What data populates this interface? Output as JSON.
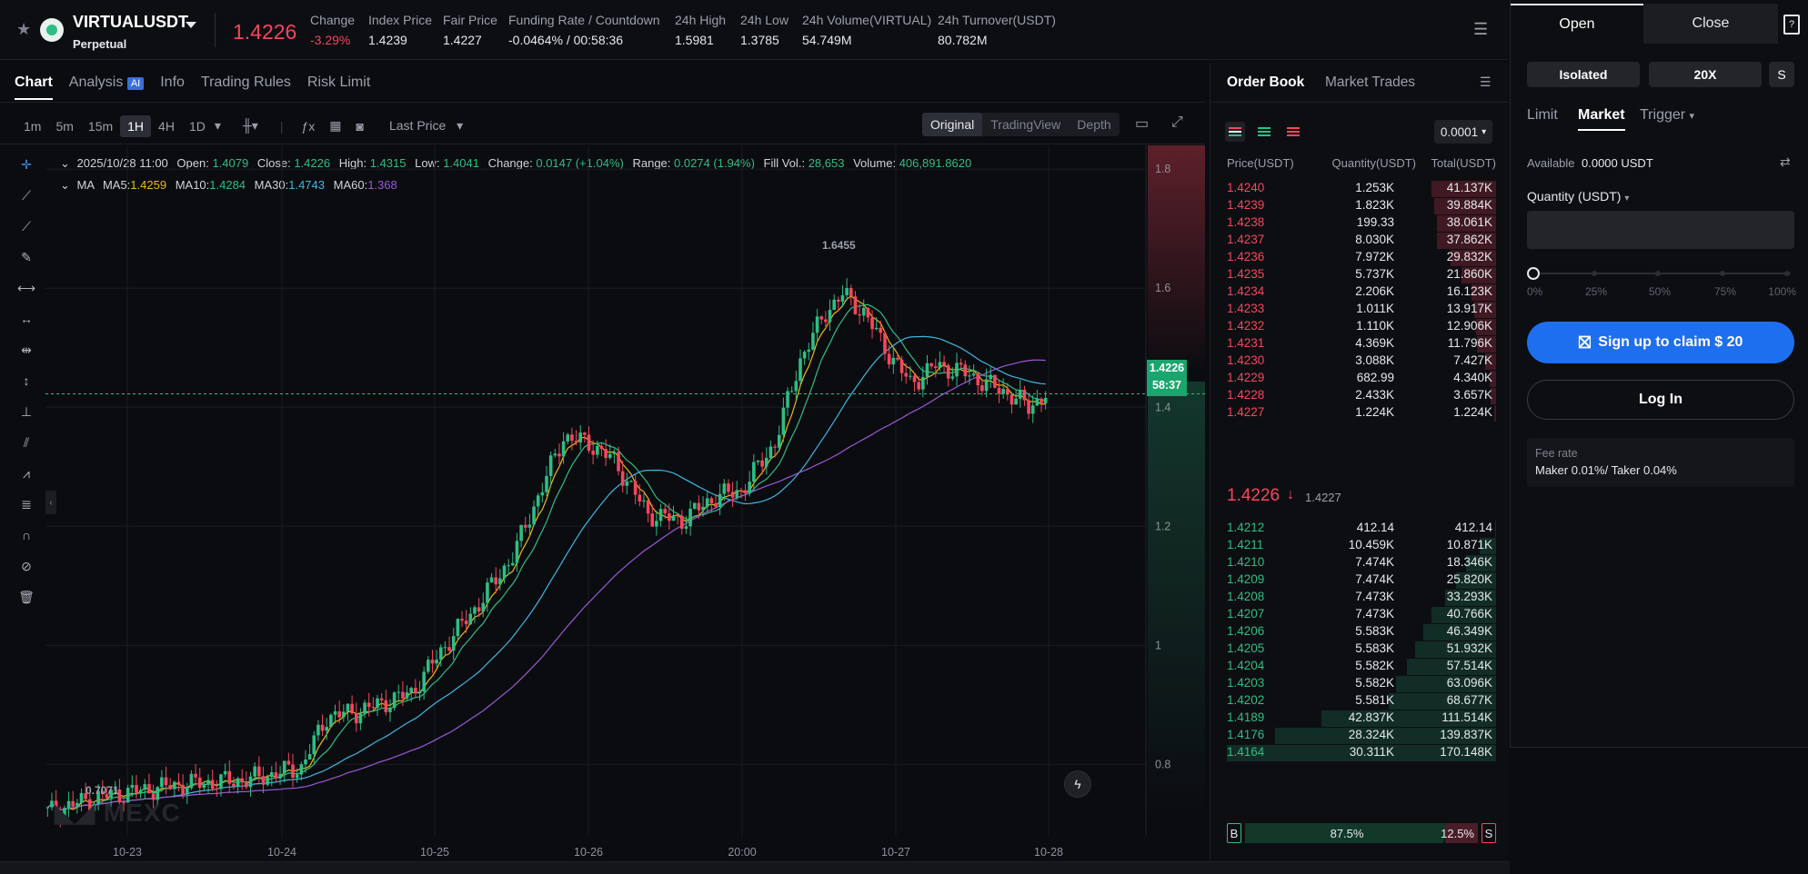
{
  "header": {
    "symbol": "VIRTUALUSDT",
    "subtitle": "Perpetual",
    "last_price": "1.4226",
    "stats": [
      {
        "label": "Change",
        "value": "-3.29%"
      },
      {
        "label": "Index Price",
        "value": "1.4239"
      },
      {
        "label": "Fair Price",
        "value": "1.4227"
      },
      {
        "label": "Funding Rate / Countdown",
        "value": "-0.0464% / 00:58:36"
      },
      {
        "label": "24h High",
        "value": "1.5981"
      },
      {
        "label": "24h Low",
        "value": "1.3785"
      },
      {
        "label": "24h Volume(VIRTUAL)",
        "value": "54.749M"
      },
      {
        "label": "24h Turnover(USDT)",
        "value": "80.782M"
      }
    ]
  },
  "chart_tabs": [
    "Chart",
    "Analysis",
    "Info",
    "Trading Rules",
    "Risk Limit"
  ],
  "analysis_badge": "AI",
  "timeframes": [
    "1m",
    "5m",
    "15m",
    "1H",
    "4H",
    "1D"
  ],
  "last_price_select": "Last Price",
  "views": [
    "Original",
    "TradingView",
    "Depth"
  ],
  "ohlc": {
    "date": "2025/10/28 11:00",
    "open_label": "Open:",
    "open": "1.4079",
    "close_label": "Close:",
    "close": "1.4226",
    "high_label": "High:",
    "high": "1.4315",
    "low_label": "Low:",
    "low": "1.4041",
    "change_label": "Change:",
    "change": "0.0147 (+1.04%)",
    "range_label": "Range:",
    "range": "0.0274 (1.94%)",
    "fill_label": "Fill Vol.:",
    "fill": "28,653",
    "volume_label": "Volume:",
    "volume": "406,891.8620"
  },
  "ma": {
    "label": "MA",
    "ma5_label": "MA5:",
    "ma5": "1.4259",
    "ma10_label": "MA10:",
    "ma10": "1.4284",
    "ma30_label": "MA30:",
    "ma30": "1.4743",
    "ma60_label": "MA60:",
    "ma60": "1.368"
  },
  "chart_data": {
    "type": "candlestick",
    "y_ticks": [
      "1.8",
      "1.6",
      "1.4",
      "1.2",
      "1",
      "0.8"
    ],
    "x_ticks": [
      "10-23",
      "10-24",
      "10-25",
      "10-26",
      "20:00",
      "10-27",
      "10-28"
    ],
    "ylim": [
      0.68,
      1.84
    ],
    "high_marker": "1.6455",
    "low_marker": "0.7071",
    "price_tag": "1.4226",
    "countdown_tag": "58:37",
    "colors": {
      "up": "#2ebd85",
      "down": "#f6465d",
      "ma5": "#f0b90b",
      "ma10": "#2ebd85",
      "ma30": "#3fb6e0",
      "ma60": "#9b59d6"
    }
  },
  "watermark": "MEXC",
  "orderbook": {
    "tabs": [
      "Order Book",
      "Market Trades"
    ],
    "precision": "0.0001",
    "headers": [
      "Price(USDT)",
      "Quantity(USDT)",
      "Total(USDT)"
    ],
    "asks": [
      {
        "p": "1.4240",
        "q": "1.253K",
        "t": "41.137K",
        "d": 0.24
      },
      {
        "p": "1.4239",
        "q": "1.823K",
        "t": "39.884K",
        "d": 0.23
      },
      {
        "p": "1.4238",
        "q": "199.33",
        "t": "38.061K",
        "d": 0.22
      },
      {
        "p": "1.4237",
        "q": "8.030K",
        "t": "37.862K",
        "d": 0.22
      },
      {
        "p": "1.4236",
        "q": "7.972K",
        "t": "29.832K",
        "d": 0.17
      },
      {
        "p": "1.4235",
        "q": "5.737K",
        "t": "21.860K",
        "d": 0.13
      },
      {
        "p": "1.4234",
        "q": "2.206K",
        "t": "16.123K",
        "d": 0.09
      },
      {
        "p": "1.4233",
        "q": "1.011K",
        "t": "13.917K",
        "d": 0.08
      },
      {
        "p": "1.4232",
        "q": "1.110K",
        "t": "12.906K",
        "d": 0.075
      },
      {
        "p": "1.4231",
        "q": "4.369K",
        "t": "11.796K",
        "d": 0.07
      },
      {
        "p": "1.4230",
        "q": "3.088K",
        "t": "7.427K",
        "d": 0.04
      },
      {
        "p": "1.4229",
        "q": "682.99",
        "t": "4.340K",
        "d": 0.025
      },
      {
        "p": "1.4228",
        "q": "2.433K",
        "t": "3.657K",
        "d": 0.02
      },
      {
        "p": "1.4227",
        "q": "1.224K",
        "t": "1.224K",
        "d": 0.007
      }
    ],
    "mid_price": "1.4226",
    "mid_index": "1.4227",
    "bids": [
      {
        "p": "1.4212",
        "q": "412.14",
        "t": "412.14",
        "d": 0.002
      },
      {
        "p": "1.4211",
        "q": "10.459K",
        "t": "10.871K",
        "d": 0.06
      },
      {
        "p": "1.4210",
        "q": "7.474K",
        "t": "18.346K",
        "d": 0.11
      },
      {
        "p": "1.4209",
        "q": "7.474K",
        "t": "25.820K",
        "d": 0.15
      },
      {
        "p": "1.4208",
        "q": "7.473K",
        "t": "33.293K",
        "d": 0.19
      },
      {
        "p": "1.4207",
        "q": "7.473K",
        "t": "40.766K",
        "d": 0.24
      },
      {
        "p": "1.4206",
        "q": "5.583K",
        "t": "46.349K",
        "d": 0.27
      },
      {
        "p": "1.4205",
        "q": "5.583K",
        "t": "51.932K",
        "d": 0.3
      },
      {
        "p": "1.4204",
        "q": "5.582K",
        "t": "57.514K",
        "d": 0.33
      },
      {
        "p": "1.4203",
        "q": "5.582K",
        "t": "63.096K",
        "d": 0.37
      },
      {
        "p": "1.4202",
        "q": "5.581K",
        "t": "68.677K",
        "d": 0.4
      },
      {
        "p": "1.4189",
        "q": "42.837K",
        "t": "111.514K",
        "d": 0.65
      },
      {
        "p": "1.4176",
        "q": "28.324K",
        "t": "139.837K",
        "d": 0.82
      },
      {
        "p": "1.4164",
        "q": "30.311K",
        "t": "170.148K",
        "d": 1.0
      }
    ],
    "buy_label": "B",
    "buy_pct": "87.5%",
    "sell_pct": "12.5%",
    "sell_label": "S",
    "buy_ratio": 0.875
  },
  "trade": {
    "open": "Open",
    "close": "Close",
    "margin_mode": "Isolated",
    "leverage": "20X",
    "mode_s": "S",
    "order_types": [
      "Limit",
      "Market",
      "Trigger"
    ],
    "available_label": "Available",
    "available_value": "0.0000 USDT",
    "quantity_label": "Quantity (USDT)",
    "slider": [
      "0%",
      "25%",
      "50%",
      "75%",
      "100%"
    ],
    "signup": "Sign up to claim $ 20",
    "login": "Log In",
    "fee_label": "Fee rate",
    "fee_value": "Maker 0.01%/ Taker 0.04%"
  }
}
